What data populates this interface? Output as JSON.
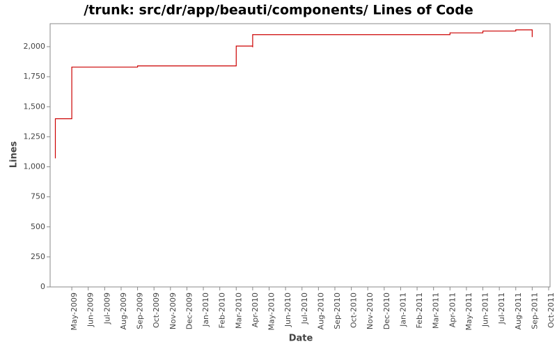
{
  "chart_data": {
    "type": "line",
    "title": "/trunk: src/dr/app/beauti/components/ Lines of Code",
    "x_label": "Date",
    "y_label": "Lines",
    "xlim": [
      "Apr-2009",
      "Oct-2011"
    ],
    "xticks": [
      "May-2009",
      "Jun-2009",
      "Jul-2009",
      "Aug-2009",
      "Sep-2009",
      "Oct-2009",
      "Nov-2009",
      "Dec-2009",
      "Jan-2010",
      "Feb-2010",
      "Mar-2010",
      "Apr-2010",
      "May-2010",
      "Jun-2010",
      "Jul-2010",
      "Aug-2010",
      "Sep-2010",
      "Oct-2010",
      "Nov-2010",
      "Dec-2010",
      "Jan-2011",
      "Feb-2011",
      "Mar-2011",
      "Apr-2011",
      "May-2011",
      "Jun-2011",
      "Jul-2011",
      "Aug-2011",
      "Sep-2011",
      "Oct-2011"
    ],
    "ylim": [
      0,
      2200
    ],
    "yticks": [
      0,
      250,
      500,
      750,
      {
        "value": 1000,
        "label": "1,000"
      },
      {
        "value": 1250,
        "label": "1,250"
      },
      {
        "value": 1500,
        "label": "1,500"
      },
      {
        "value": 1750,
        "label": "1,750"
      },
      {
        "value": 2000,
        "label": "2,000"
      }
    ],
    "series": [
      {
        "color": "#cc0000",
        "x": [
          "Apr-2009",
          "Apr-2009",
          "May-2009",
          "May-2009",
          "May-2009",
          "Sep-2009",
          "Sep-2009",
          "Mar-2010",
          "Mar-2010",
          "Apr-2010",
          "Apr-2010",
          "Apr-2010",
          "Apr-2010",
          "Apr-2011",
          "Apr-2011",
          "Jun-2011",
          "Jun-2011",
          "Aug-2011",
          "Aug-2011",
          "Sep-2011",
          "Sep-2011"
        ],
        "values": [
          1070,
          1400,
          1400,
          1560,
          1830,
          1830,
          1840,
          1840,
          2005,
          2005,
          1995,
          2080,
          2100,
          2100,
          2115,
          2115,
          2130,
          2130,
          2140,
          2140,
          2080
        ]
      }
    ]
  }
}
